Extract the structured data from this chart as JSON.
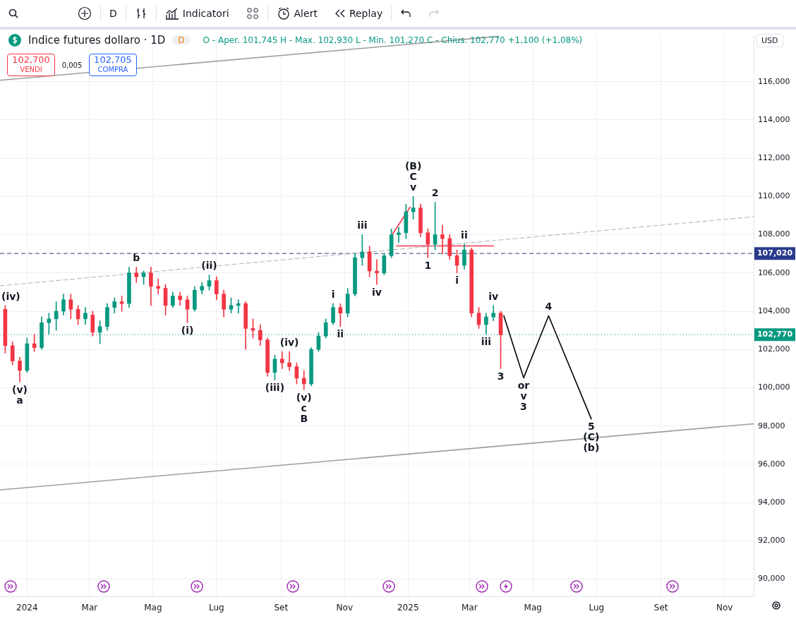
{
  "chart_data": {
    "type": "candlestick",
    "title": "Indice futures dollaro · 1D",
    "xlim": [
      "2023-12-06",
      "2025-11-29"
    ],
    "ylim": [
      89.1,
      118.4
    ],
    "xticks": [
      {
        "value": "2024-01-01",
        "label": "2024"
      },
      {
        "value": "2024-03-01",
        "label": "Mar"
      },
      {
        "value": "2024-05-01",
        "label": "Mag"
      },
      {
        "value": "2024-07-01",
        "label": "Lug"
      },
      {
        "value": "2024-09-01",
        "label": "Set"
      },
      {
        "value": "2024-11-01",
        "label": "Nov"
      },
      {
        "value": "2025-01-01",
        "label": "2025"
      },
      {
        "value": "2025-03-01",
        "label": "Mar"
      },
      {
        "value": "2025-05-01",
        "label": "Mag"
      },
      {
        "value": "2025-07-01",
        "label": "Lug"
      },
      {
        "value": "2025-09-01",
        "label": "Set"
      },
      {
        "value": "2025-11-01",
        "label": "Nov"
      }
    ],
    "yticks": [
      {
        "value": 90,
        "label": "90,000"
      },
      {
        "value": 92,
        "label": "92,000"
      },
      {
        "value": 94,
        "label": "94,000"
      },
      {
        "value": 96,
        "label": "96,000"
      },
      {
        "value": 98,
        "label": "98,000"
      },
      {
        "value": 100,
        "label": "100,000"
      },
      {
        "value": 102,
        "label": "102,000"
      },
      {
        "value": 104,
        "label": "104,000"
      },
      {
        "value": 106,
        "label": "106,000"
      },
      {
        "value": 108,
        "label": "108,000"
      },
      {
        "value": 110,
        "label": "110,000"
      },
      {
        "value": 112,
        "label": "112,000"
      },
      {
        "value": 114,
        "label": "114,000"
      },
      {
        "value": 116,
        "label": "116,000"
      }
    ],
    "grid": true,
    "marker": "none",
    "series": [
      {
        "x": [
          "2023-12-11",
          "2023-12-18",
          "2023-12-25",
          "2024-01-01",
          "2024-01-08",
          "2024-01-15",
          "2024-01-22",
          "2024-01-29",
          "2024-02-05",
          "2024-02-12",
          "2024-02-19",
          "2024-02-26",
          "2024-03-04",
          "2024-03-11",
          "2024-03-18",
          "2024-03-25",
          "2024-04-01",
          "2024-04-08",
          "2024-04-15",
          "2024-04-22",
          "2024-04-29",
          "2024-05-06",
          "2024-05-13",
          "2024-05-20",
          "2024-05-27",
          "2024-06-03",
          "2024-06-10",
          "2024-06-17",
          "2024-06-24",
          "2024-07-01",
          "2024-07-08",
          "2024-07-15",
          "2024-07-22",
          "2024-07-29",
          "2024-08-05",
          "2024-08-12",
          "2024-08-19",
          "2024-08-26",
          "2024-09-02",
          "2024-09-09",
          "2024-09-16",
          "2024-09-23",
          "2024-09-30",
          "2024-10-07",
          "2024-10-14",
          "2024-10-21",
          "2024-10-28",
          "2024-11-04",
          "2024-11-11",
          "2024-11-18",
          "2024-11-25",
          "2024-12-02",
          "2024-12-09",
          "2024-12-16",
          "2024-12-23",
          "2024-12-30",
          "2025-01-06",
          "2025-01-13",
          "2025-01-20",
          "2025-01-27",
          "2025-02-03",
          "2025-02-10",
          "2025-02-17",
          "2025-02-24",
          "2025-03-03",
          "2025-03-10",
          "2025-03-17",
          "2025-03-24",
          "2025-03-31"
        ],
        "ohlc": [
          [
            104.1,
            104.3,
            101.8,
            102.2
          ],
          [
            102.2,
            102.4,
            101.2,
            101.4
          ],
          [
            101.4,
            101.6,
            100.3,
            100.9
          ],
          [
            100.9,
            102.6,
            100.8,
            102.3
          ],
          [
            102.3,
            102.8,
            101.9,
            102.1
          ],
          [
            102.1,
            103.7,
            102.0,
            103.4
          ],
          [
            103.4,
            103.9,
            102.8,
            103.6
          ],
          [
            103.6,
            104.5,
            103.0,
            104.0
          ],
          [
            104.0,
            104.9,
            103.8,
            104.6
          ],
          [
            104.6,
            104.9,
            103.6,
            104.1
          ],
          [
            104.1,
            104.3,
            103.3,
            103.6
          ],
          [
            103.6,
            104.2,
            103.3,
            103.9
          ],
          [
            103.8,
            104.0,
            102.7,
            102.9
          ],
          [
            102.9,
            103.5,
            102.3,
            103.2
          ],
          [
            103.2,
            104.4,
            103.0,
            104.2
          ],
          [
            104.2,
            104.7,
            103.9,
            104.5
          ],
          [
            104.5,
            104.8,
            104.0,
            104.4
          ],
          [
            104.4,
            106.3,
            104.2,
            106.0
          ],
          [
            106.0,
            106.3,
            105.5,
            105.8
          ],
          [
            105.8,
            106.1,
            105.4,
            106.0
          ],
          [
            106.0,
            106.3,
            104.3,
            105.3
          ],
          [
            105.3,
            105.7,
            104.9,
            105.2
          ],
          [
            105.2,
            105.4,
            103.8,
            104.3
          ],
          [
            104.3,
            105.0,
            104.2,
            104.8
          ],
          [
            104.8,
            105.0,
            104.3,
            104.6
          ],
          [
            104.6,
            104.8,
            103.4,
            104.1
          ],
          [
            104.1,
            105.3,
            104.0,
            105.1
          ],
          [
            105.1,
            105.5,
            104.9,
            105.3
          ],
          [
            105.3,
            105.9,
            105.1,
            105.6
          ],
          [
            105.6,
            105.8,
            104.6,
            104.9
          ],
          [
            104.9,
            105.1,
            103.7,
            104.1
          ],
          [
            104.1,
            104.7,
            103.9,
            104.3
          ],
          [
            104.3,
            104.6,
            103.9,
            104.4
          ],
          [
            104.4,
            104.5,
            102.0,
            103.1
          ],
          [
            103.1,
            103.6,
            102.6,
            103.0
          ],
          [
            103.0,
            103.3,
            102.2,
            102.5
          ],
          [
            102.5,
            102.6,
            100.6,
            100.8
          ],
          [
            100.8,
            101.7,
            100.4,
            101.5
          ],
          [
            101.5,
            101.9,
            101.0,
            101.3
          ],
          [
            101.3,
            101.9,
            100.9,
            101.1
          ],
          [
            101.1,
            101.3,
            100.2,
            100.5
          ],
          [
            100.5,
            100.9,
            99.9,
            100.2
          ],
          [
            100.2,
            102.1,
            100.1,
            102.0
          ],
          [
            102.0,
            102.9,
            101.9,
            102.7
          ],
          [
            102.7,
            103.6,
            102.6,
            103.4
          ],
          [
            103.4,
            104.4,
            103.3,
            104.2
          ],
          [
            104.2,
            104.4,
            103.2,
            103.9
          ],
          [
            103.9,
            105.2,
            103.7,
            104.9
          ],
          [
            104.9,
            107.0,
            104.8,
            106.8
          ],
          [
            106.8,
            108.0,
            106.4,
            107.1
          ],
          [
            107.1,
            107.4,
            105.8,
            106.1
          ],
          [
            106.1,
            106.7,
            105.4,
            106.0
          ],
          [
            106.0,
            107.0,
            105.9,
            106.9
          ],
          [
            106.9,
            108.3,
            106.8,
            108.0
          ],
          [
            108.0,
            108.4,
            107.6,
            108.1
          ],
          [
            108.1,
            109.6,
            107.8,
            109.2
          ],
          [
            109.2,
            110.0,
            108.8,
            109.4
          ],
          [
            109.4,
            109.6,
            107.9,
            108.1
          ],
          [
            108.1,
            108.3,
            106.8,
            107.5
          ],
          [
            107.5,
            109.7,
            107.2,
            108.0
          ],
          [
            108.0,
            108.5,
            107.0,
            107.8
          ],
          [
            107.8,
            108.0,
            106.7,
            106.9
          ],
          [
            106.9,
            107.2,
            106.0,
            106.4
          ],
          [
            106.4,
            107.5,
            106.2,
            107.2
          ],
          [
            107.2,
            107.3,
            103.7,
            103.9
          ],
          [
            103.9,
            104.2,
            103.1,
            103.3
          ],
          [
            103.3,
            103.9,
            102.8,
            103.7
          ],
          [
            103.7,
            104.3,
            103.5,
            103.9
          ],
          [
            103.9,
            104.0,
            101.0,
            102.77
          ]
        ],
        "colors": [
          "#f23645",
          "#f23645",
          "#f23645",
          "#089981",
          "#f23645",
          "#089981",
          "#089981",
          "#089981",
          "#089981",
          "#f23645",
          "#f23645",
          "#089981",
          "#f23645",
          "#089981",
          "#089981",
          "#089981",
          "#f23645",
          "#089981",
          "#f23645",
          "#089981",
          "#f23645",
          "#f23645",
          "#f23645",
          "#089981",
          "#f23645",
          "#f23645",
          "#089981",
          "#089981",
          "#089981",
          "#f23645",
          "#f23645",
          "#089981",
          "#089981",
          "#f23645",
          "#f23645",
          "#f23645",
          "#f23645",
          "#089981",
          "#f23645",
          "#f23645",
          "#f23645",
          "#f23645",
          "#089981",
          "#089981",
          "#089981",
          "#089981",
          "#f23645",
          "#089981",
          "#089981",
          "#089981",
          "#f23645",
          "#f23645",
          "#089981",
          "#089981",
          "#089981",
          "#089981",
          "#089981",
          "#f23645",
          "#f23645",
          "#089981",
          "#f23645",
          "#f23645",
          "#f23645",
          "#089981",
          "#f23645",
          "#f23645",
          "#089981",
          "#089981",
          "#f23645"
        ]
      },
      {
        "type": "line",
        "x": [
          "2025-04-03",
          "2025-04-22",
          "2025-05-16",
          "2025-06-26"
        ],
        "values": [
          103.76,
          100.52,
          103.76,
          98.37
        ],
        "color": "#000000",
        "line_style": "solid"
      },
      {
        "type": "line",
        "x": [
          "2023-12-06",
          "2025-03-29"
        ],
        "values": [
          116.07,
          118.37
        ],
        "color": "#9e9e9e",
        "line_style": "solid"
      },
      {
        "type": "line",
        "x": [
          "2023-12-06",
          "2025-11-29"
        ],
        "values": [
          94.66,
          98.12
        ],
        "color": "#9e9e9e",
        "line_style": "solid"
      },
      {
        "type": "line",
        "x": [
          "2023-12-06",
          "2025-11-29"
        ],
        "values": [
          105.33,
          108.94
        ],
        "color": "#b0b0b0",
        "line_style": "dashed"
      },
      {
        "type": "line",
        "x": [
          "2024-12-17",
          "2025-01-03"
        ],
        "values": [
          108.02,
          109.44
        ],
        "color": "#f23645",
        "line_style": "solid"
      },
      {
        "type": "line",
        "x": [
          "2024-12-21",
          "2025-03-24"
        ],
        "values": [
          107.41,
          107.41
        ],
        "color": "#f23645",
        "line_style": "solid"
      }
    ],
    "ref_lines": [
      {
        "axis": "y",
        "value": 107.02,
        "label": "107,020",
        "color": "#2a3a8c",
        "line_style": "dashed"
      },
      {
        "axis": "y",
        "value": 102.77,
        "label": "102,770",
        "color": "#089981",
        "line_style": "dotted"
      }
    ],
    "annotations": [
      "D",
      "Indicatori",
      "Alert",
      "Replay",
      "D",
      "O - Aper. 101,745 H - Max. 102,930 L - Min. 101,270 C - Chius. 102,770 +1,100 (+1,08%)",
      "102,700",
      "VENDI",
      "0,005",
      "102,705",
      "COMPRA",
      "USD",
      {
        "text": "(iv)",
        "x": "2023-12-11",
        "y": 104.3
      },
      {
        "text": "(v)",
        "x": "2023-12-25",
        "y": 100.3
      },
      {
        "text": "a",
        "x": "2023-12-25",
        "y": 100.3
      },
      {
        "text": "b",
        "x": "2024-04-15",
        "y": 106.3
      },
      {
        "text": "(ii)",
        "x": "2024-06-24",
        "y": 105.9
      },
      {
        "text": "(i)",
        "x": "2024-06-03",
        "y": 103.4
      },
      {
        "text": "(iv)",
        "x": "2024-09-09",
        "y": 101.9
      },
      {
        "text": "(iii)",
        "x": "2024-08-26",
        "y": 100.4
      },
      {
        "text": "(v)",
        "x": "2024-09-23",
        "y": 99.9
      },
      {
        "text": "c",
        "x": "2024-09-23",
        "y": 99.9
      },
      {
        "text": "B",
        "x": "2024-09-23",
        "y": 99.9
      },
      {
        "text": "i",
        "x": "2024-10-21",
        "y": 104.4
      },
      {
        "text": "ii",
        "x": "2024-10-28",
        "y": 103.2
      },
      {
        "text": "iii",
        "x": "2024-11-18",
        "y": 108.0
      },
      {
        "text": "iv",
        "x": "2024-12-02",
        "y": 105.4
      },
      {
        "text": "v",
        "x": "2025-01-06",
        "y": 110.0
      },
      {
        "text": "C",
        "x": "2025-01-06",
        "y": 110.0
      },
      {
        "text": "(B)",
        "x": "2025-01-06",
        "y": 110.0
      },
      {
        "text": "2",
        "x": "2025-01-27",
        "y": 109.7
      },
      {
        "text": "ii",
        "x": "2025-02-24",
        "y": 107.5
      },
      {
        "text": "1",
        "x": "2025-01-20",
        "y": 106.8
      },
      {
        "text": "i",
        "x": "2025-02-17",
        "y": 106.0
      },
      {
        "text": "iv",
        "x": "2025-03-24",
        "y": 104.3
      },
      {
        "text": "4",
        "x": "2025-05-16",
        "y": 103.76
      },
      {
        "text": "iii",
        "x": "2025-03-17",
        "y": 102.8
      },
      {
        "text": "3",
        "x": "2025-03-31",
        "y": 101.0
      },
      {
        "text": "or",
        "x": "2025-04-22",
        "y": 100.52
      },
      {
        "text": "v",
        "x": "2025-04-22",
        "y": 100.52
      },
      {
        "text": "3",
        "x": "2025-04-22",
        "y": 100.52
      },
      {
        "text": "5",
        "x": "2025-06-26",
        "y": 98.37
      },
      {
        "text": "(C)",
        "x": "2025-06-26",
        "y": 98.37
      },
      {
        "text": "(b)",
        "x": "2025-06-26",
        "y": 98.37
      }
    ]
  }
}
